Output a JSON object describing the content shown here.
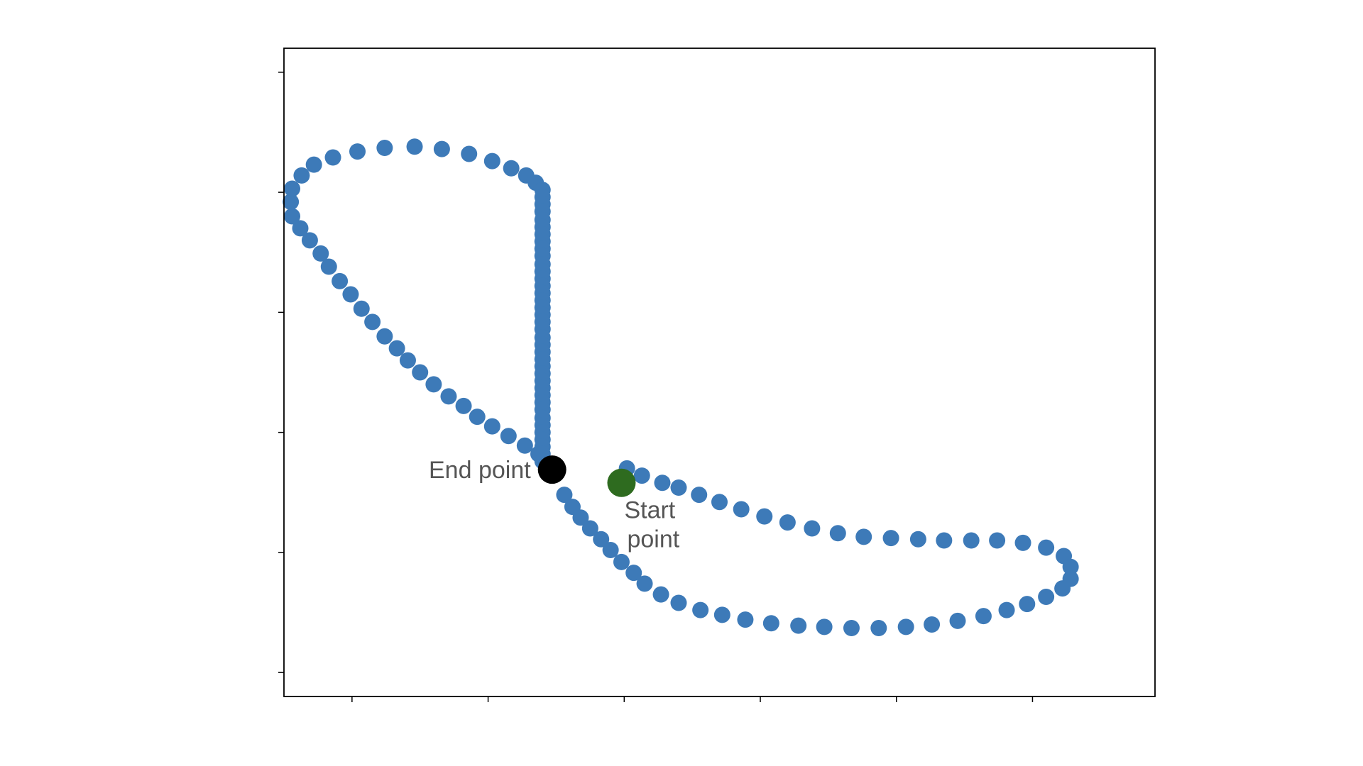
{
  "chart_data": {
    "type": "scatter",
    "title": "",
    "xlabel": "",
    "ylabel": "",
    "xlim": [
      -0.5,
      5.9
    ],
    "ylim": [
      -0.2,
      5.2
    ],
    "grid": false,
    "xticks": [
      0,
      1,
      2,
      3,
      4,
      5
    ],
    "yticks": [
      0,
      1,
      2,
      3,
      4,
      5
    ],
    "series": [
      {
        "name": "",
        "color": "#3d7ab8",
        "points": [
          [
            2.02,
            1.7
          ],
          [
            2.13,
            1.64
          ],
          [
            2.28,
            1.58
          ],
          [
            2.4,
            1.54
          ],
          [
            2.55,
            1.48
          ],
          [
            2.7,
            1.42
          ],
          [
            2.86,
            1.36
          ],
          [
            3.03,
            1.3
          ],
          [
            3.2,
            1.25
          ],
          [
            3.38,
            1.2
          ],
          [
            3.57,
            1.16
          ],
          [
            3.76,
            1.13
          ],
          [
            3.96,
            1.12
          ],
          [
            4.16,
            1.11
          ],
          [
            4.35,
            1.1
          ],
          [
            4.55,
            1.1
          ],
          [
            4.74,
            1.1
          ],
          [
            4.93,
            1.08
          ],
          [
            5.1,
            1.04
          ],
          [
            5.23,
            0.97
          ],
          [
            5.28,
            0.88
          ],
          [
            5.28,
            0.78
          ],
          [
            5.22,
            0.7
          ],
          [
            5.1,
            0.63
          ],
          [
            4.96,
            0.57
          ],
          [
            4.81,
            0.52
          ],
          [
            4.64,
            0.47
          ],
          [
            4.45,
            0.43
          ],
          [
            4.26,
            0.4
          ],
          [
            4.07,
            0.38
          ],
          [
            3.87,
            0.37
          ],
          [
            3.67,
            0.37
          ],
          [
            3.47,
            0.38
          ],
          [
            3.28,
            0.39
          ],
          [
            3.08,
            0.41
          ],
          [
            2.89,
            0.44
          ],
          [
            2.72,
            0.48
          ],
          [
            2.56,
            0.52
          ],
          [
            2.4,
            0.58
          ],
          [
            2.27,
            0.65
          ],
          [
            2.15,
            0.74
          ],
          [
            2.07,
            0.83
          ],
          [
            1.98,
            0.92
          ],
          [
            1.9,
            1.02
          ],
          [
            1.83,
            1.11
          ],
          [
            1.75,
            1.2
          ],
          [
            1.68,
            1.29
          ],
          [
            1.62,
            1.38
          ],
          [
            1.56,
            1.48
          ],
          [
            1.49,
            1.73
          ],
          [
            1.37,
            1.82
          ],
          [
            1.27,
            1.89
          ],
          [
            1.15,
            1.97
          ],
          [
            1.03,
            2.05
          ],
          [
            0.92,
            2.13
          ],
          [
            0.82,
            2.22
          ],
          [
            0.71,
            2.3
          ],
          [
            0.6,
            2.4
          ],
          [
            0.5,
            2.5
          ],
          [
            0.41,
            2.6
          ],
          [
            0.33,
            2.7
          ],
          [
            0.24,
            2.8
          ],
          [
            0.15,
            2.92
          ],
          [
            0.07,
            3.03
          ],
          [
            -0.01,
            3.15
          ],
          [
            -0.09,
            3.26
          ],
          [
            -0.17,
            3.38
          ],
          [
            -0.23,
            3.49
          ],
          [
            -0.31,
            3.6
          ],
          [
            -0.38,
            3.7
          ],
          [
            -0.44,
            3.8
          ],
          [
            -0.45,
            3.92
          ],
          [
            -0.44,
            4.03
          ],
          [
            -0.37,
            4.14
          ],
          [
            -0.28,
            4.23
          ],
          [
            -0.14,
            4.29
          ],
          [
            0.04,
            4.34
          ],
          [
            0.24,
            4.37
          ],
          [
            0.46,
            4.38
          ],
          [
            0.66,
            4.36
          ],
          [
            0.86,
            4.32
          ],
          [
            1.03,
            4.26
          ],
          [
            1.17,
            4.2
          ],
          [
            1.28,
            4.14
          ],
          [
            1.35,
            4.08
          ],
          [
            1.4,
            4.02
          ],
          [
            1.4,
            3.96
          ],
          [
            1.4,
            3.9
          ],
          [
            1.4,
            3.84
          ],
          [
            1.4,
            3.77
          ],
          [
            1.4,
            3.71
          ],
          [
            1.4,
            3.65
          ],
          [
            1.4,
            3.59
          ],
          [
            1.4,
            3.53
          ],
          [
            1.4,
            3.47
          ],
          [
            1.4,
            3.4
          ],
          [
            1.4,
            3.34
          ],
          [
            1.4,
            3.28
          ],
          [
            1.4,
            3.22
          ],
          [
            1.4,
            3.16
          ],
          [
            1.4,
            3.1
          ],
          [
            1.4,
            3.04
          ],
          [
            1.4,
            2.98
          ],
          [
            1.4,
            2.92
          ],
          [
            1.4,
            2.86
          ],
          [
            1.4,
            2.79
          ],
          [
            1.4,
            2.73
          ],
          [
            1.4,
            2.67
          ],
          [
            1.4,
            2.61
          ],
          [
            1.4,
            2.55
          ],
          [
            1.4,
            2.49
          ],
          [
            1.4,
            2.43
          ],
          [
            1.4,
            2.37
          ],
          [
            1.4,
            2.31
          ],
          [
            1.4,
            2.25
          ],
          [
            1.4,
            2.19
          ],
          [
            1.4,
            2.12
          ],
          [
            1.4,
            2.06
          ],
          [
            1.4,
            2.0
          ],
          [
            1.4,
            1.94
          ],
          [
            1.4,
            1.88
          ],
          [
            1.4,
            1.82
          ],
          [
            1.4,
            1.76
          ]
        ]
      }
    ],
    "markers": {
      "start": {
        "label": "Start point",
        "line1": "Start",
        "line2": "point",
        "x": 1.98,
        "y": 1.58,
        "color": "#2e6b1f"
      },
      "end": {
        "label": "End point",
        "x": 1.47,
        "y": 1.69,
        "color": "#000000"
      }
    }
  }
}
